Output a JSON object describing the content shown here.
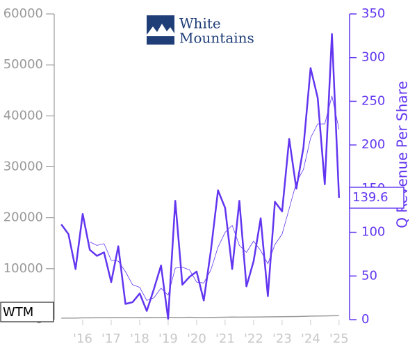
{
  "chart_data": {
    "type": "line",
    "logo": [
      "White",
      "Mountains"
    ],
    "y2label": "Q Revenue Per Share",
    "x": [
      2015.25,
      2015.5,
      2015.75,
      2016,
      2016.25,
      2016.5,
      2016.75,
      2017,
      2017.25,
      2017.5,
      2017.75,
      2018,
      2018.25,
      2018.5,
      2018.75,
      2019,
      2019.25,
      2019.5,
      2019.75,
      2020,
      2020.25,
      2020.5,
      2020.75,
      2021,
      2021.25,
      2021.5,
      2021.75,
      2022,
      2022.25,
      2022.5,
      2022.75,
      2023,
      2023.25,
      2023.5,
      2023.75,
      2024,
      2024.25,
      2024.5,
      2024.75,
      2025
    ],
    "xlim": [
      2015,
      2025.37
    ],
    "xticks": [
      {
        "value": 2016,
        "label": "'16"
      },
      {
        "value": 2017,
        "label": "'17"
      },
      {
        "value": 2018,
        "label": "'18"
      },
      {
        "value": 2019,
        "label": "'19"
      },
      {
        "value": 2020,
        "label": "'20"
      },
      {
        "value": 2021,
        "label": "'21"
      },
      {
        "value": 2022,
        "label": "'22"
      },
      {
        "value": 2023,
        "label": "'23"
      },
      {
        "value": 2024,
        "label": "'24"
      },
      {
        "value": 2025,
        "label": "'25"
      }
    ],
    "ylim": [
      0,
      60000
    ],
    "yticks": [
      0,
      10000,
      20000,
      30000,
      40000,
      50000,
      60000
    ],
    "y2lim": [
      0,
      350
    ],
    "y2ticks": [
      0,
      50,
      100,
      150,
      200,
      250,
      300,
      350
    ],
    "series": [
      {
        "color": "#6236f0",
        "axis": "y2",
        "width": 2.5,
        "values": [
          109,
          98,
          58,
          121,
          80,
          73,
          77,
          43,
          84,
          18,
          20,
          30,
          10,
          35,
          62,
          1,
          136,
          40,
          49,
          55,
          22,
          79,
          148,
          128,
          58,
          136,
          38,
          67,
          116,
          27,
          135,
          124,
          207,
          150,
          197,
          288,
          254,
          155,
          327,
          139.6
        ]
      },
      {
        "color": "#6236f0",
        "axis": "y2",
        "width": 0.8,
        "values": [
          null,
          null,
          null,
          null,
          89,
          85,
          87,
          68,
          67,
          55,
          40,
          37,
          22,
          25,
          36,
          28,
          59,
          60,
          57,
          43,
          42,
          57,
          83,
          100,
          108,
          85,
          77,
          90,
          79,
          64,
          86,
          98,
          127,
          157,
          172,
          208,
          224,
          224,
          256,
          218
        ]
      },
      {
        "name": "WTM",
        "color": "#999999",
        "axis": "y",
        "width": 1.5,
        "values": [
          300,
          320,
          310,
          350,
          360,
          380,
          370,
          400,
          410,
          390,
          380,
          400,
          420,
          410,
          430,
          450,
          440,
          430,
          460,
          420,
          400,
          430,
          460,
          480,
          500,
          490,
          520,
          510,
          530,
          550,
          560,
          580,
          600,
          620,
          650,
          700,
          720,
          740,
          760,
          780
        ]
      }
    ]
  }
}
